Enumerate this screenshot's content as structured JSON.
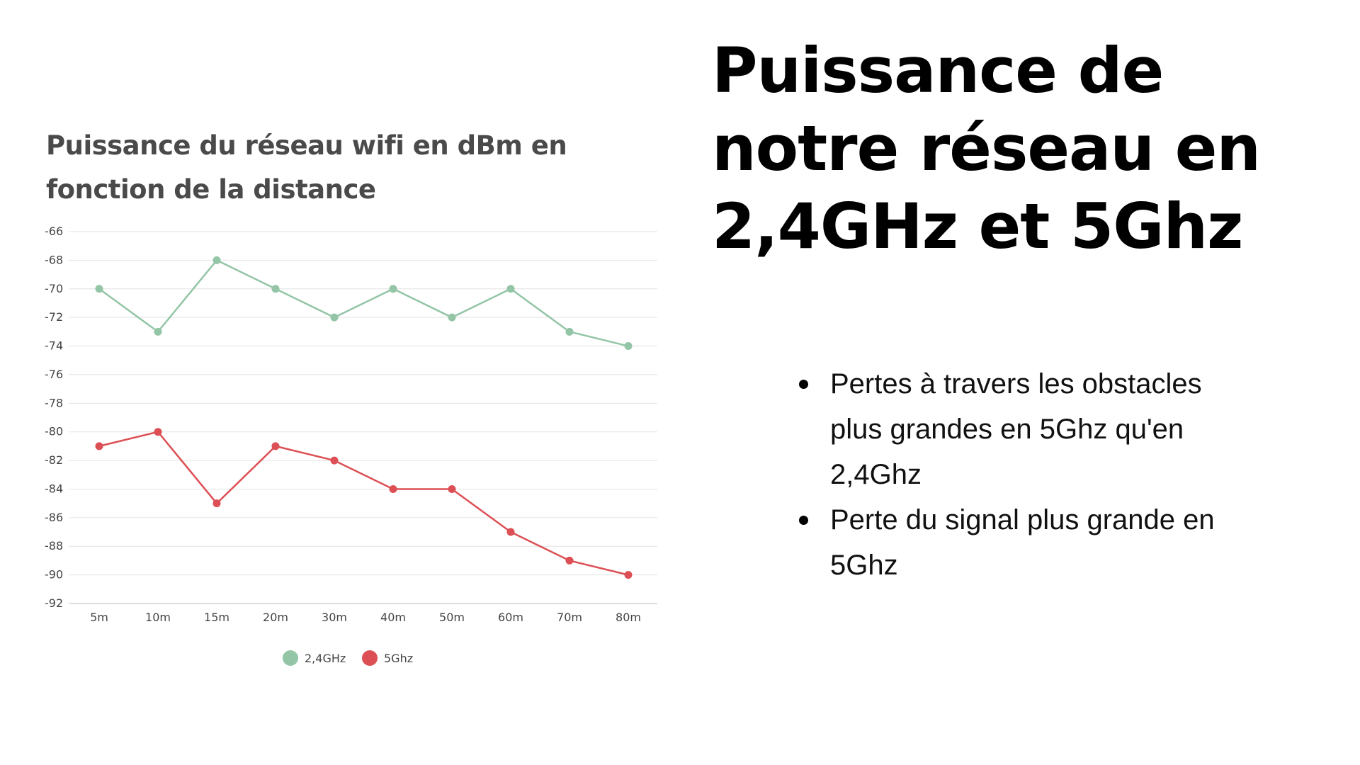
{
  "headline": "Puissance de notre réseau en 2,4GHz et 5Ghz",
  "bullets": [
    "Pertes à travers les obstacles plus grandes en 5Ghz qu'en 2,4Ghz",
    "Perte du signal plus grande en 5Ghz"
  ],
  "chart_data": {
    "type": "line",
    "title": "Puissance du réseau wifi en dBm en fonction de la distance",
    "categories": [
      "5m",
      "10m",
      "15m",
      "20m",
      "30m",
      "40m",
      "50m",
      "60m",
      "70m",
      "80m"
    ],
    "ylim": [
      -92,
      -66
    ],
    "yticks": [
      -66,
      -68,
      -70,
      -72,
      -74,
      -76,
      -78,
      -80,
      -82,
      -84,
      -86,
      -88,
      -90,
      -92
    ],
    "grid": true,
    "legend_position": "bottom",
    "series": [
      {
        "name": "2,4GHz",
        "color": "#93c5a6",
        "values": [
          -70,
          -73,
          -68,
          -70,
          -72,
          -70,
          -72,
          -70,
          -73,
          -74
        ]
      },
      {
        "name": "5Ghz",
        "color": "#dc4f54",
        "values": [
          -81,
          -80,
          -85,
          -81,
          -82,
          -84,
          -84,
          -87,
          -89,
          -90
        ]
      }
    ]
  }
}
